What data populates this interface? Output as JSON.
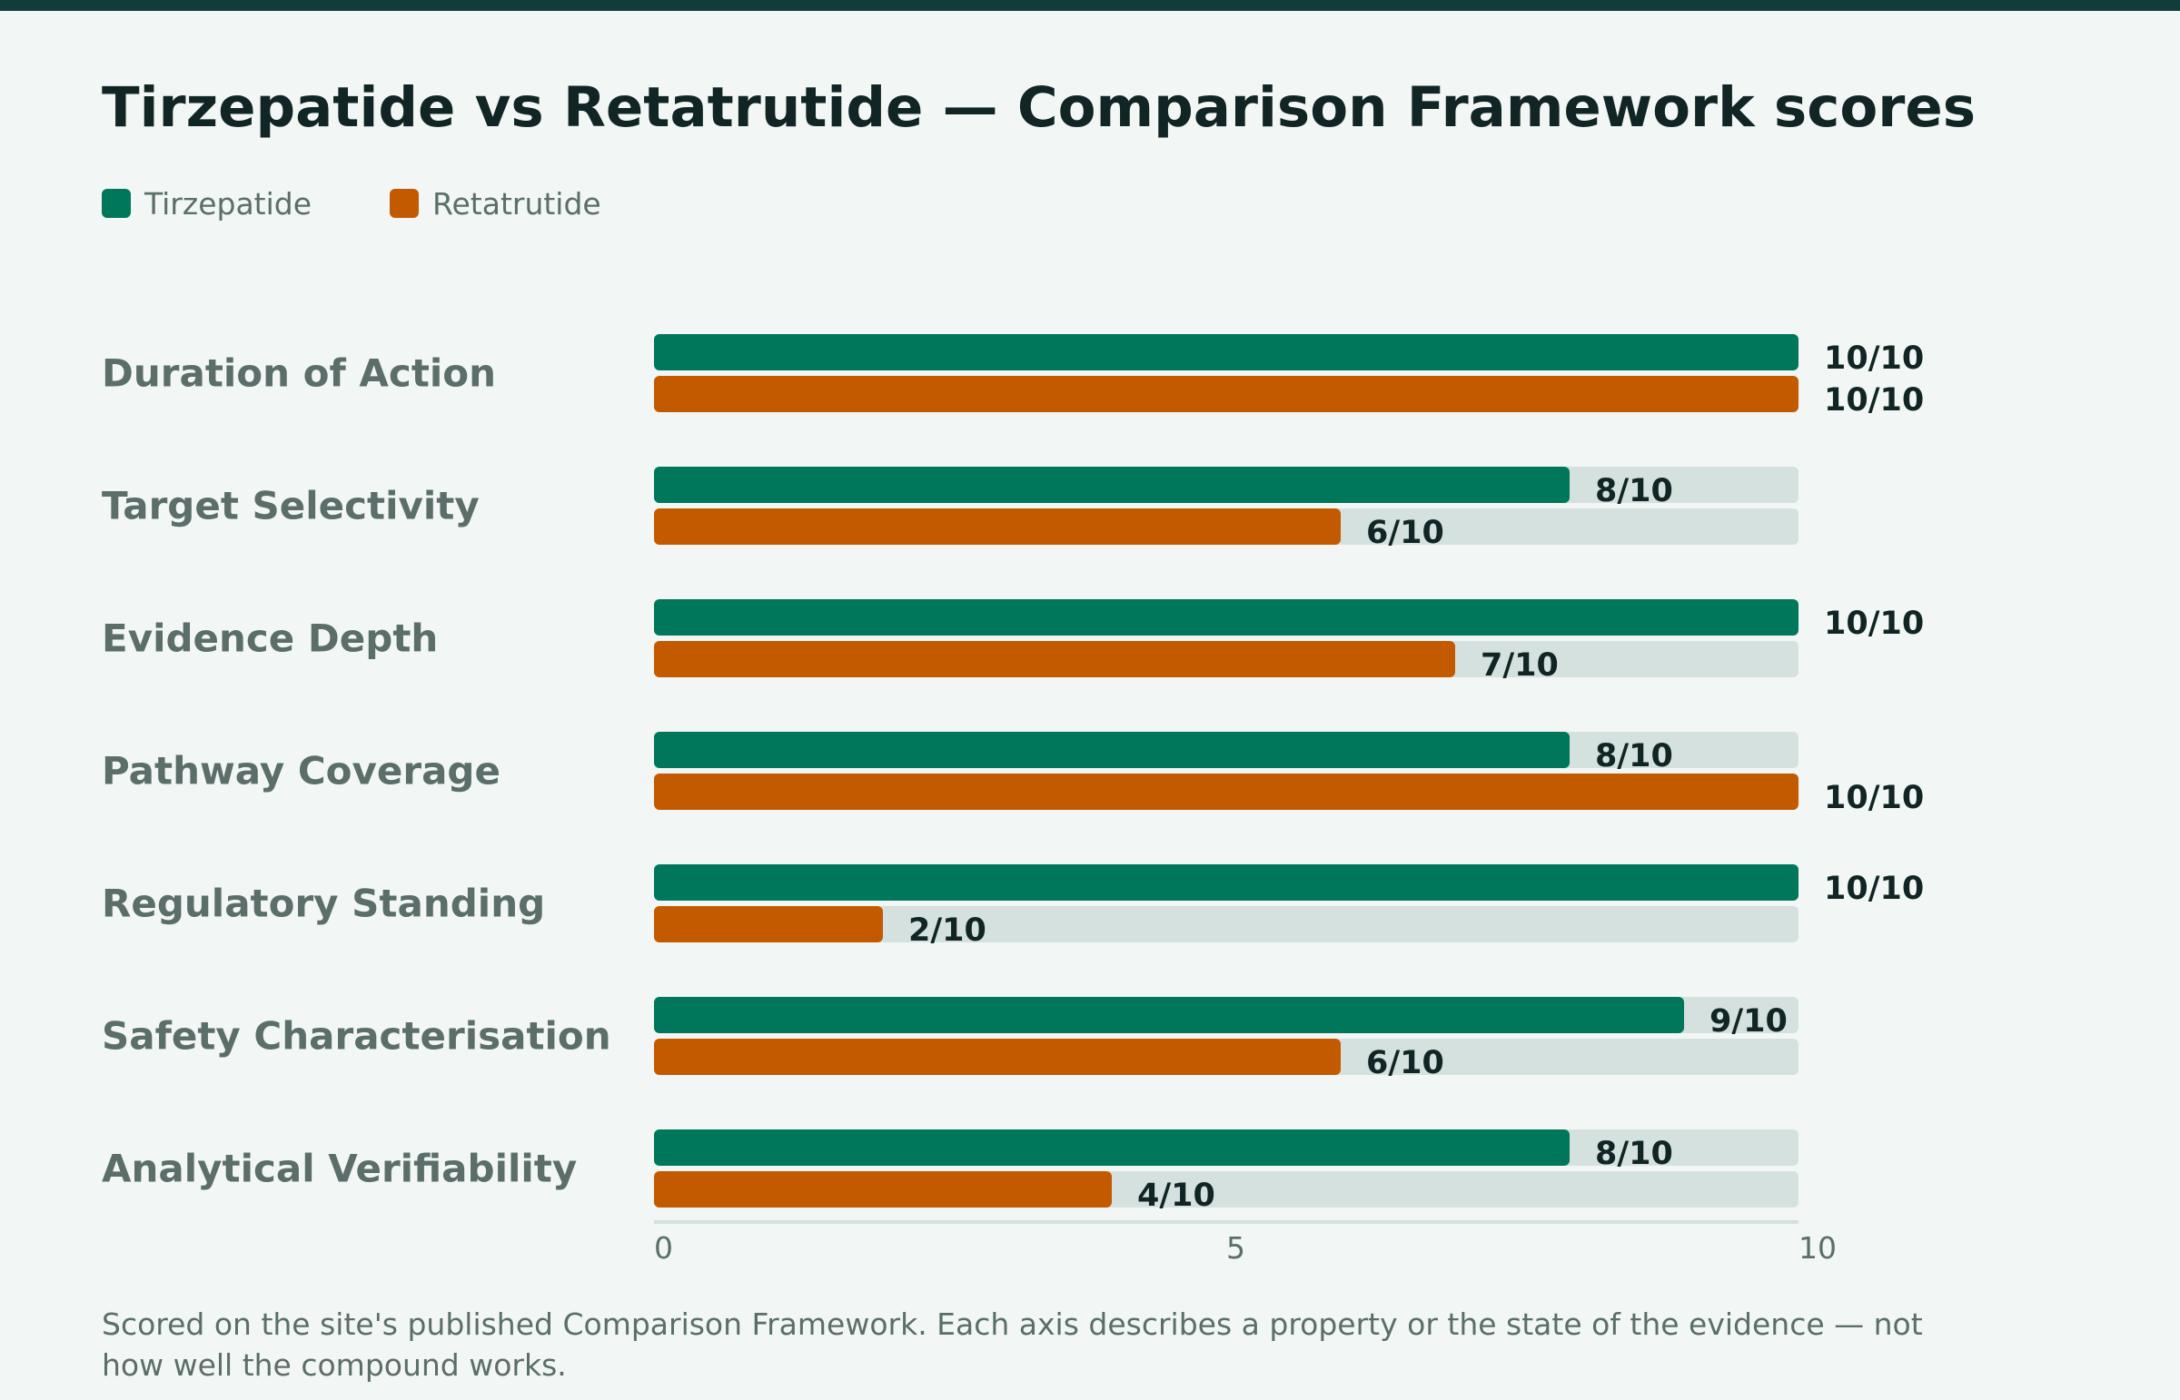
{
  "chart_data": {
    "type": "bar",
    "orientation": "horizontal",
    "title": "Tirzepatide vs Retatrutide — Comparison Framework scores",
    "categories": [
      "Duration of Action",
      "Target Selectivity",
      "Evidence Depth",
      "Pathway Coverage",
      "Regulatory Standing",
      "Safety Characterisation",
      "Analytical Verifiability"
    ],
    "series": [
      {
        "name": "Tirzepatide",
        "color": "#00775b",
        "values": [
          10,
          8,
          10,
          8,
          10,
          9,
          8
        ],
        "labels": [
          "10/10",
          "8/10",
          "10/10",
          "8/10",
          "10/10",
          "9/10",
          "8/10"
        ]
      },
      {
        "name": "Retatrutide",
        "color": "#c45a00",
        "values": [
          10,
          6,
          7,
          10,
          2,
          6,
          4
        ],
        "labels": [
          "10/10",
          "6/10",
          "7/10",
          "10/10",
          "2/10",
          "6/10",
          "4/10"
        ]
      }
    ],
    "xlim": [
      0,
      10
    ],
    "xticks": [
      "0",
      "5",
      "10"
    ],
    "xlabel": "",
    "ylabel": "",
    "legend": "top-left",
    "grid": false,
    "track_color": "#d5e1de",
    "footnote": "Scored on the site's published Comparison Framework. Each axis describes a property or the state of the evidence — not how well the compound works."
  }
}
